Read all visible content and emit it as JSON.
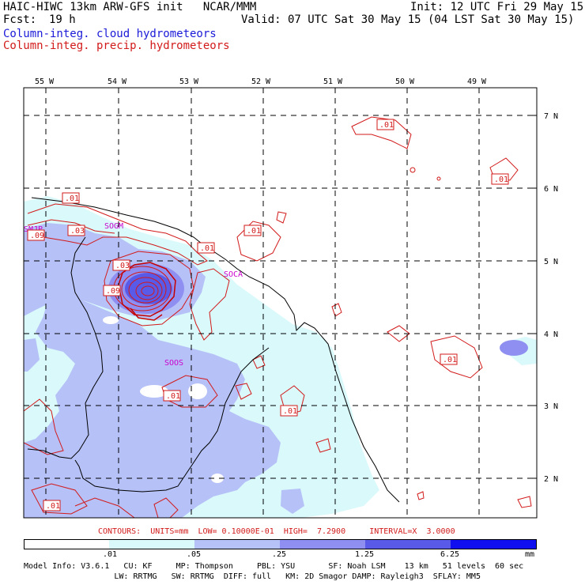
{
  "header": {
    "title": "HAIC-HIWC 13km ARW-GFS init   NCAR/MMM",
    "init": "Init: 12 UTC Fri 29 May 15",
    "fcst_label": "Fcst:",
    "fcst_value": "19 h",
    "valid": "Valid: 07 UTC Sat 30 May 15 (04 LST Sat 30 May 15)",
    "field_cloud": "Column-integ. cloud hydrometeors",
    "field_precip": "Column-integ. precip. hydrometeors"
  },
  "map": {
    "lon_labels": [
      "55 W",
      "54 W",
      "53 W",
      "52 W",
      "51 W",
      "50 W",
      "49 W"
    ],
    "lat_labels": [
      "7 N",
      "6 N",
      "5 N",
      "4 N",
      "3 N",
      "2 N"
    ],
    "stations": [
      "SMJP",
      "SOGM",
      "SOCA",
      "SOOS"
    ],
    "contour_labels": [
      ".01",
      ".01",
      ".03",
      ".09",
      ".03",
      ".09",
      ".01",
      ".01",
      ".01",
      ".01",
      ".01",
      ".01",
      ".01"
    ]
  },
  "contour_info": {
    "contours": "CONTOURS:",
    "units": "UNITS=mm",
    "low": "LOW= 0.10000E-01",
    "high": "HIGH=  7.2900",
    "interval": "INTERVAL=X  3.0000"
  },
  "legend": {
    "ticks": [
      ".01",
      ".05",
      ".25",
      "1.25",
      "6.25"
    ],
    "unit": "mm",
    "colors": [
      "#ffffff",
      "#d9f9fb",
      "#b6c1f7",
      "#8f8ff1",
      "#5a5ae8",
      "#0f0ff0"
    ]
  },
  "footer": {
    "line1": "Model Info: V3.6.1   CU: KF     MP: Thompson     PBL: YSU       SF: Noah LSM    13 km   51 levels  60 sec",
    "line2": "                   LW: RRTMG   SW: RRTMG  DIFF: full   KM: 2D Smagor DAMP: Rayleigh3  SFLAY: MM5"
  }
}
